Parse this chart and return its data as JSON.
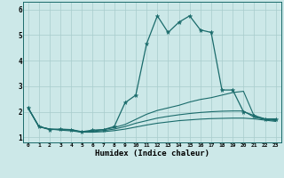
{
  "title": "",
  "xlabel": "Humidex (Indice chaleur)",
  "xlim": [
    -0.5,
    23.5
  ],
  "ylim": [
    0.8,
    6.3
  ],
  "yticks": [
    1,
    2,
    3,
    4,
    5,
    6
  ],
  "xticks": [
    0,
    1,
    2,
    3,
    4,
    5,
    6,
    7,
    8,
    9,
    10,
    11,
    12,
    13,
    14,
    15,
    16,
    17,
    18,
    19,
    20,
    21,
    22,
    23
  ],
  "bg_color": "#cce8e8",
  "line_color": "#1a6b6b",
  "grid_color": "#a8cccc",
  "lines": [
    {
      "x": [
        0,
        1,
        2,
        3,
        4,
        5,
        6,
        7,
        8,
        9,
        10,
        11,
        12,
        13,
        14,
        15,
        16,
        17,
        18,
        19,
        20,
        21,
        22,
        23
      ],
      "y": [
        2.15,
        1.42,
        1.3,
        1.32,
        1.3,
        1.22,
        1.28,
        1.3,
        1.42,
        2.35,
        2.65,
        4.65,
        5.75,
        5.1,
        5.5,
        5.75,
        5.2,
        5.1,
        2.85,
        2.85,
        2.0,
        1.85,
        1.72,
        1.72
      ],
      "marker": "*",
      "markersize": 3.5,
      "linewidth": 0.9
    },
    {
      "x": [
        0,
        1,
        2,
        3,
        4,
        5,
        6,
        7,
        8,
        9,
        10,
        11,
        12,
        13,
        14,
        15,
        16,
        17,
        18,
        19,
        20,
        21,
        22,
        23
      ],
      "y": [
        2.15,
        1.42,
        1.32,
        1.3,
        1.3,
        1.2,
        1.25,
        1.3,
        1.38,
        1.5,
        1.7,
        1.9,
        2.05,
        2.15,
        2.25,
        2.38,
        2.48,
        2.55,
        2.65,
        2.75,
        2.8,
        1.82,
        1.72,
        1.68
      ],
      "marker": null,
      "markersize": 0,
      "linewidth": 0.8
    },
    {
      "x": [
        0,
        1,
        2,
        3,
        4,
        5,
        6,
        7,
        8,
        9,
        10,
        11,
        12,
        13,
        14,
        15,
        16,
        17,
        18,
        19,
        20,
        21,
        22,
        23
      ],
      "y": [
        2.15,
        1.42,
        1.32,
        1.3,
        1.28,
        1.2,
        1.22,
        1.26,
        1.32,
        1.42,
        1.55,
        1.65,
        1.75,
        1.82,
        1.88,
        1.93,
        1.97,
        2.0,
        2.02,
        2.03,
        2.03,
        1.78,
        1.7,
        1.65
      ],
      "marker": null,
      "markersize": 0,
      "linewidth": 0.8
    },
    {
      "x": [
        0,
        1,
        2,
        3,
        4,
        5,
        6,
        7,
        8,
        9,
        10,
        11,
        12,
        13,
        14,
        15,
        16,
        17,
        18,
        19,
        20,
        21,
        22,
        23
      ],
      "y": [
        2.15,
        1.42,
        1.32,
        1.28,
        1.25,
        1.2,
        1.2,
        1.22,
        1.26,
        1.32,
        1.4,
        1.48,
        1.55,
        1.6,
        1.65,
        1.68,
        1.71,
        1.73,
        1.74,
        1.75,
        1.75,
        1.72,
        1.67,
        1.62
      ],
      "marker": null,
      "markersize": 0,
      "linewidth": 0.8
    }
  ]
}
